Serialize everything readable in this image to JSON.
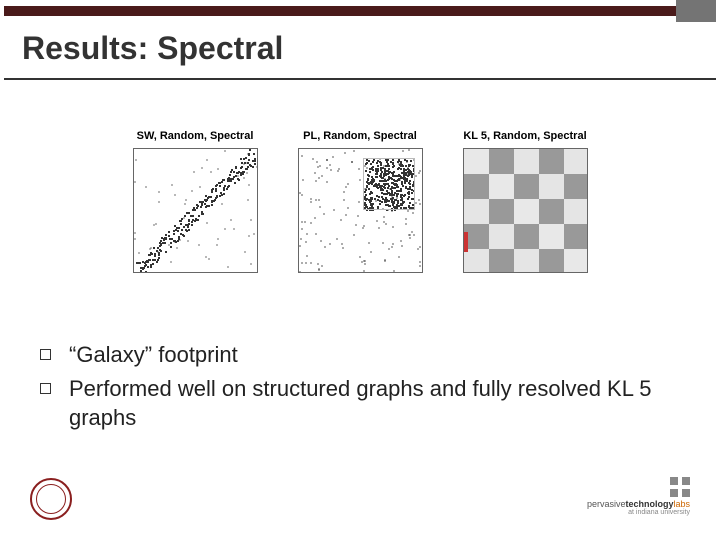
{
  "slide": {
    "title": "Results: Spectral",
    "top_bar_color": "#4a1a1a",
    "notch_color": "#747474"
  },
  "panels": [
    {
      "title": "SW, Random, Spectral",
      "kind": "diag-scatter"
    },
    {
      "title": "PL, Random, Spectral",
      "kind": "cluster-scatter"
    },
    {
      "title": "KL 5, Random, Spectral",
      "kind": "block-checker"
    }
  ],
  "bullets": [
    "“Galaxy” footprint",
    "Performed well on structured graphs and fully resolved KL 5 graphs"
  ],
  "footer": {
    "seal_color": "#8a1f1f",
    "lab_line1": "pervasive",
    "lab_line1b": "technology",
    "lab_line1c": "labs",
    "lab_line2": "at indiana university"
  },
  "panel_style": {
    "box_size": 125,
    "border_color": "#666666",
    "point_color": "#333333",
    "checker_dark": "#999999",
    "checker_light": "#cccccc"
  }
}
